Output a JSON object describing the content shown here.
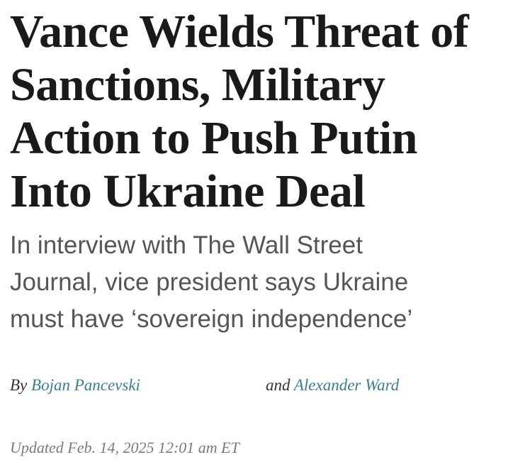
{
  "headline": {
    "lines": [
      "Vance Wields Threat of",
      "Sanctions, Military",
      "Action to Push Putin",
      "Into Ukraine Deal"
    ]
  },
  "dek": {
    "lines": [
      "In interview with The Wall Street",
      "Journal, vice president says Ukraine",
      "must have ‘sovereign independence’"
    ]
  },
  "byline": {
    "by": "By",
    "author1": "Bojan Pancevski",
    "and": "and",
    "author2": "Alexander Ward"
  },
  "timestamp": "Updated Feb. 14, 2025 12:01 am ET",
  "colors": {
    "author_link": "#3a7f8c",
    "headline": "#1a1a1a",
    "dek": "#555555",
    "timestamp": "#7a7a7a"
  }
}
